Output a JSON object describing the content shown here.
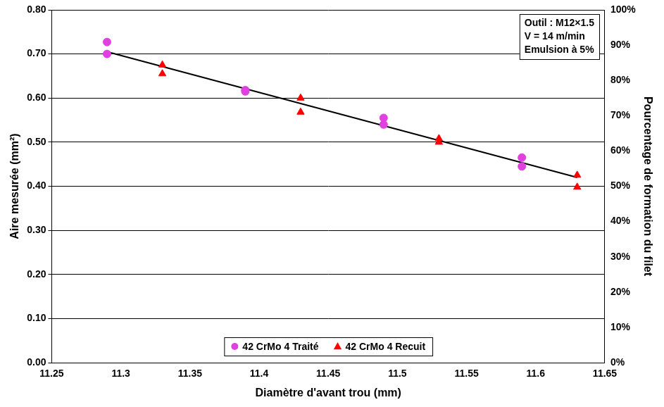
{
  "chart_data": {
    "type": "scatter",
    "x_label": "Diamètre d'avant trou (mm)",
    "y_label": "Aire mesurée (mm²)",
    "y2_label": "Pourcentage de formation du filet",
    "annotation": [
      "Outil : M12×1.5",
      "V = 14 m/min",
      "Emulsion à 5%"
    ],
    "xlim": [
      11.25,
      11.65
    ],
    "xticks": [
      11.25,
      11.3,
      11.35,
      11.4,
      11.45,
      11.5,
      11.55,
      11.6,
      11.65
    ],
    "ylim": [
      0,
      0.8
    ],
    "yticks": [
      {
        "value": 0,
        "label": "0.00"
      },
      {
        "value": 0.1,
        "label": "0.10"
      },
      {
        "value": 0.2,
        "label": "0.20"
      },
      {
        "value": 0.3,
        "label": "0.30"
      },
      {
        "value": 0.4,
        "label": "0.40"
      },
      {
        "value": 0.5,
        "label": "0.50"
      },
      {
        "value": 0.6,
        "label": "0.60"
      },
      {
        "value": 0.7,
        "label": "0.70"
      },
      {
        "value": 0.8,
        "label": "0.80"
      }
    ],
    "y2lim": [
      0,
      100
    ],
    "y2ticks": [
      {
        "value": 0,
        "label": "0%"
      },
      {
        "value": 10,
        "label": "10%"
      },
      {
        "value": 20,
        "label": "20%"
      },
      {
        "value": 30,
        "label": "30%"
      },
      {
        "value": 40,
        "label": "40%"
      },
      {
        "value": 50,
        "label": "50%"
      },
      {
        "value": 60,
        "label": "60%"
      },
      {
        "value": 70,
        "label": "70%"
      },
      {
        "value": 80,
        "label": "80%"
      },
      {
        "value": 90,
        "label": "90%"
      },
      {
        "value": 100,
        "label": "100%"
      }
    ],
    "grid": "y",
    "legend": "lower center",
    "series": [
      {
        "name": "42 CrMo 4 Traité",
        "color": "#e040e0",
        "marker": "circle",
        "x": [
          11.29,
          11.29,
          11.39,
          11.39,
          11.49,
          11.49,
          11.59,
          11.59
        ],
        "values": [
          0.727,
          0.7,
          0.618,
          0.615,
          0.555,
          0.54,
          0.465,
          0.445
        ]
      },
      {
        "name": "42 CrMo 4 Recuit",
        "color": "#ff0000",
        "marker": "triangle",
        "x": [
          11.33,
          11.33,
          11.43,
          11.43,
          11.53,
          11.53,
          11.63,
          11.63
        ],
        "values": [
          0.675,
          0.655,
          0.6,
          0.568,
          0.508,
          0.5,
          0.425,
          0.398
        ]
      }
    ],
    "trend_line": {
      "color": "#000000",
      "line_style": "solid",
      "x": [
        11.29,
        11.63
      ],
      "values": [
        0.705,
        0.42
      ]
    }
  }
}
